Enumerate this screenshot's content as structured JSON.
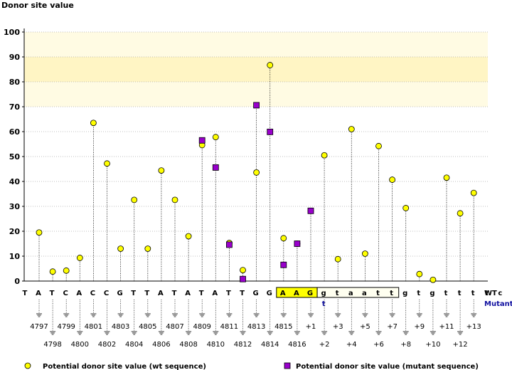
{
  "chart_data": {
    "type": "scatter",
    "title": "",
    "ylabel": "Donor site value",
    "xlabel": "",
    "ylim": [
      0,
      100
    ],
    "yticks": [
      "0",
      "10",
      "20",
      "30",
      "40",
      "50",
      "60",
      "70",
      "80",
      "90",
      "100"
    ],
    "threshold_band": [
      70,
      100
    ],
    "highlight_band": [
      80,
      90
    ],
    "nucleotides": [
      "T",
      "A",
      "T",
      "C",
      "A",
      "C",
      "C",
      "G",
      "T",
      "T",
      "A",
      "T",
      "A",
      "T",
      "A",
      "T",
      "T",
      "G",
      "G",
      "A",
      "A",
      "G",
      "g",
      "t",
      "a",
      "a",
      "t",
      "t",
      "g",
      "t",
      "g",
      "t",
      "t",
      "t",
      "t",
      "c"
    ],
    "positions": [
      "4797",
      "4798",
      "4799",
      "4800",
      "4801",
      "4802",
      "4803",
      "4804",
      "4805",
      "4806",
      "4807",
      "4808",
      "4809",
      "4810",
      "4811",
      "4812",
      "4813",
      "4814",
      "4815",
      "4816",
      "+1",
      "+2",
      "+3",
      "+4",
      "+5",
      "+6",
      "+7",
      "+8",
      "+9",
      "+10",
      "+11",
      "+12",
      "+13"
    ],
    "mutant_base": "t",
    "wt_label": "WT",
    "mutant_label": "Mutant",
    "series": [
      {
        "name": "Potential donor site value (wt sequence)",
        "values": [
          19.5,
          3.8,
          4.2,
          9.3,
          63.5,
          47.2,
          13,
          32.6,
          13,
          44.4,
          32.6,
          18,
          54.6,
          57.8,
          15.3,
          4.4,
          43.6,
          86.7,
          17.2,
          15,
          28.2,
          50.5,
          8.8,
          61,
          11,
          54.2,
          40.7,
          29.3,
          2.8,
          0.5,
          41.5,
          27.2,
          35.4
        ]
      },
      {
        "name": "Potential donor site value (mutant sequence)",
        "values": [
          null,
          null,
          null,
          null,
          null,
          null,
          null,
          null,
          null,
          null,
          null,
          null,
          56.5,
          45.6,
          14.6,
          0.8,
          70.6,
          59.9,
          6.5,
          15,
          28.2,
          null,
          null,
          null,
          null,
          null,
          null,
          null,
          null,
          null,
          null,
          null,
          null
        ]
      }
    ]
  }
}
